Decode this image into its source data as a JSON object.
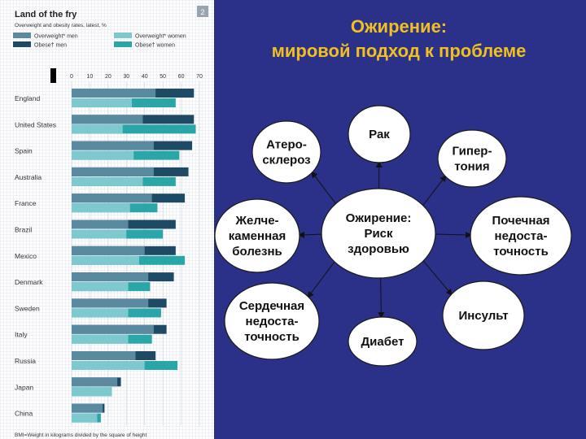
{
  "slide": {
    "title_line1": "Ожирение:",
    "title_line2": "мировой подход к проблеме"
  },
  "chart": {
    "title": "Land of the fry",
    "subtitle": "Overweight and obesity rates, latest, %",
    "badge": "2",
    "footer": "BMI=Weight in kilograms divided by the square of height",
    "legend": [
      {
        "label": "Overweight* men",
        "color": "#5a8aa0"
      },
      {
        "label": "Overweight* women",
        "color": "#7ec9cf"
      },
      {
        "label": "Obese† men",
        "color": "#1e4a66"
      },
      {
        "label": "Obese† women",
        "color": "#2aa6a8"
      }
    ]
  },
  "chart_data": {
    "type": "bar",
    "title": "Land of the fry",
    "subtitle": "Overweight and obesity rates, latest, %",
    "xlim": [
      0,
      70
    ],
    "ticks": [
      "0",
      "10",
      "20",
      "30",
      "40",
      "50",
      "60",
      "70"
    ],
    "categories": [
      "England",
      "United States",
      "Spain",
      "Australia",
      "France",
      "Brazil",
      "Mexico",
      "Denmark",
      "Sweden",
      "Italy",
      "Russia",
      "Japan",
      "China"
    ],
    "series": [
      {
        "name": "Overweight* men",
        "values": [
          46,
          39,
          45,
          45,
          44,
          31,
          40,
          42,
          42,
          45,
          35,
          25,
          17
        ]
      },
      {
        "name": "Obese† men",
        "values": [
          67,
          67,
          66,
          64,
          62,
          57,
          57,
          56,
          52,
          52,
          46,
          27,
          18
        ]
      },
      {
        "name": "Overweight* women",
        "values": [
          33,
          28,
          34,
          39,
          32,
          30,
          37,
          31,
          31,
          31,
          40,
          22,
          14
        ]
      },
      {
        "name": "Obese† women",
        "values": [
          57,
          68,
          59,
          57,
          47,
          50,
          62,
          43,
          49,
          44,
          58,
          22,
          16
        ]
      }
    ],
    "legend_position": "top"
  },
  "diagram": {
    "center": {
      "lines": [
        "Ожирение:",
        "Риск",
        "здоровью"
      ]
    },
    "nodes": [
      {
        "key": "rak",
        "lines": [
          "Рак"
        ]
      },
      {
        "key": "ateroskleroz",
        "lines": [
          "Атеро-",
          "склероз"
        ]
      },
      {
        "key": "gipertonia",
        "lines": [
          "Гипер-",
          "тония"
        ]
      },
      {
        "key": "zhelche",
        "lines": [
          "Желче-",
          "каменная",
          "болезнь"
        ]
      },
      {
        "key": "pochechnaya",
        "lines": [
          "Почечная",
          "недоста-",
          "точность"
        ]
      },
      {
        "key": "serdechnaya",
        "lines": [
          "Сердечная",
          "недоста-",
          "точность"
        ]
      },
      {
        "key": "diabet",
        "lines": [
          "Диабет"
        ]
      },
      {
        "key": "insult",
        "lines": [
          "Инсульт"
        ]
      }
    ]
  }
}
